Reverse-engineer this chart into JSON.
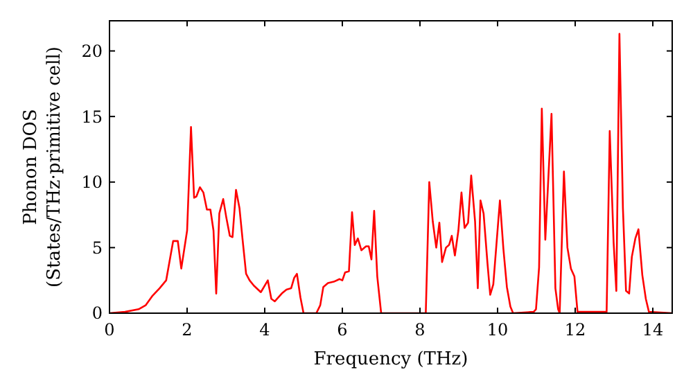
{
  "chart_data": {
    "type": "line",
    "xlabel": "Frequency (THz)",
    "ylabel": "Phonon DOS\n(States/THz·primitive cell)",
    "xlim": [
      0,
      14.5
    ],
    "ylim": [
      0,
      22.3
    ],
    "xticks": [
      0,
      2,
      4,
      6,
      8,
      10,
      12,
      14
    ],
    "yticks": [
      0,
      5,
      10,
      15,
      20
    ],
    "grid": false,
    "marker": "none",
    "line_style": "solid",
    "series": [
      {
        "color": "#ff0000",
        "x": [
          0,
          0.4,
          0.75,
          0.93,
          1.1,
          1.29,
          1.46,
          1.64,
          1.76,
          1.85,
          2.0,
          2.1,
          2.18,
          2.24,
          2.33,
          2.42,
          2.51,
          2.6,
          2.68,
          2.75,
          2.83,
          2.93,
          3.01,
          3.1,
          3.17,
          3.26,
          3.35,
          3.43,
          3.52,
          3.61,
          3.72,
          3.9,
          4.08,
          4.17,
          4.26,
          4.44,
          4.56,
          4.68,
          4.76,
          4.83,
          4.92,
          5.0,
          5.33,
          5.43,
          5.51,
          5.63,
          5.78,
          5.93,
          6.0,
          6.07,
          6.17,
          6.25,
          6.32,
          6.4,
          6.49,
          6.61,
          6.68,
          6.75,
          6.82,
          6.9,
          7.0,
          8.15,
          8.24,
          8.33,
          8.42,
          8.5,
          8.57,
          8.67,
          8.75,
          8.82,
          8.9,
          8.99,
          9.07,
          9.15,
          9.24,
          9.32,
          9.42,
          9.49,
          9.56,
          9.64,
          9.74,
          9.81,
          9.89,
          10.06,
          10.15,
          10.24,
          10.33,
          10.4,
          10.93,
          10.99,
          11.07,
          11.14,
          11.23,
          11.39,
          11.49,
          11.56,
          11.6,
          11.71,
          11.8,
          11.89,
          11.98,
          12.06,
          12.81,
          12.89,
          12.99,
          13.06,
          13.14,
          13.23,
          13.31,
          13.39,
          13.46,
          13.55,
          13.63,
          13.73,
          13.82,
          13.9,
          14.5
        ],
        "values": [
          0,
          0.1,
          0.3,
          0.6,
          1.3,
          1.9,
          2.5,
          5.5,
          5.5,
          3.4,
          6.3,
          14.2,
          8.8,
          8.9,
          9.6,
          9.2,
          7.9,
          7.9,
          6.3,
          1.5,
          7.6,
          8.7,
          7.3,
          5.9,
          5.8,
          9.4,
          8.0,
          5.6,
          3.0,
          2.5,
          2.1,
          1.6,
          2.5,
          1.1,
          0.9,
          1.5,
          1.8,
          1.9,
          2.7,
          3.0,
          1.2,
          0,
          0,
          0.6,
          2.0,
          2.3,
          2.4,
          2.6,
          2.5,
          3.1,
          3.2,
          7.7,
          5.2,
          5.7,
          4.8,
          5.1,
          5.1,
          4.1,
          7.8,
          2.8,
          0,
          0,
          10.0,
          7.0,
          5.0,
          6.9,
          3.9,
          5.0,
          5.2,
          5.9,
          4.4,
          6.3,
          9.2,
          6.5,
          6.9,
          10.5,
          7.0,
          1.9,
          8.6,
          7.6,
          3.8,
          1.4,
          2.2,
          8.6,
          4.9,
          2.0,
          0.5,
          0,
          0.1,
          0.3,
          3.5,
          15.6,
          5.6,
          15.2,
          1.9,
          0.3,
          0,
          10.8,
          5.0,
          3.4,
          2.8,
          0.1,
          0.1,
          13.9,
          5.4,
          1.7,
          21.3,
          8.0,
          1.7,
          1.5,
          4.3,
          5.7,
          6.4,
          2.9,
          1.1,
          0.1,
          0
        ]
      }
    ]
  }
}
